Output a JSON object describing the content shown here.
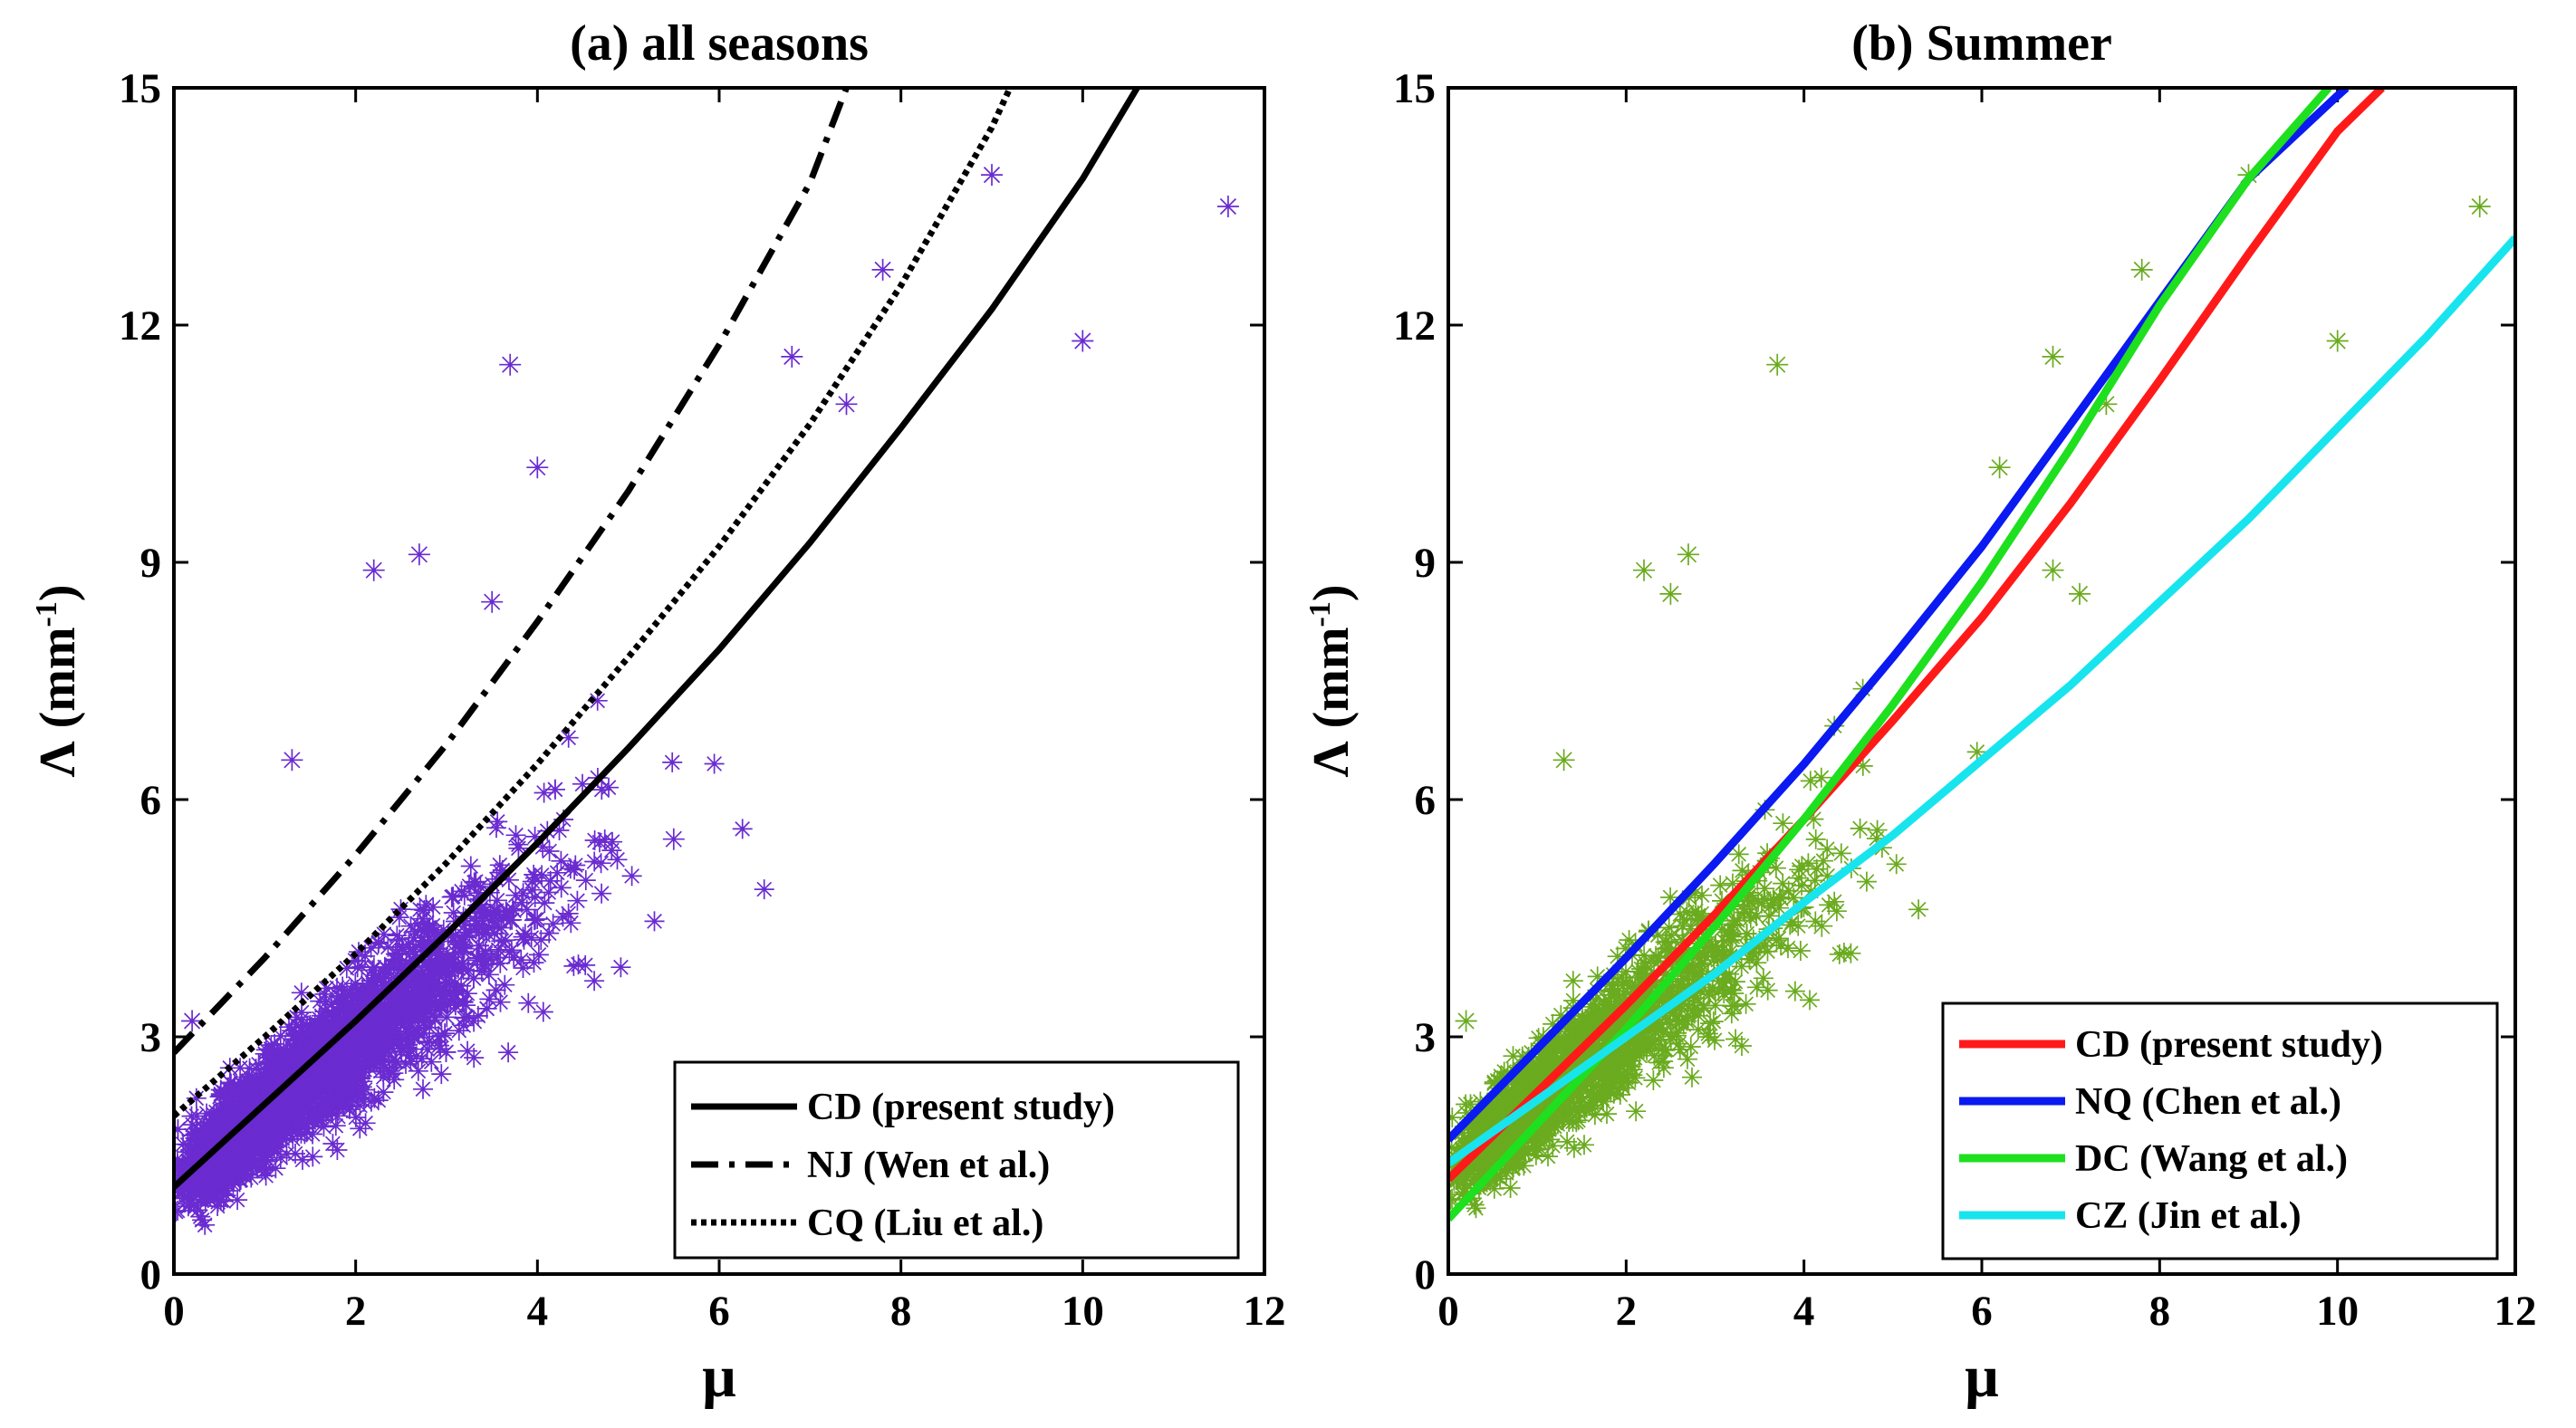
{
  "chart_data": [
    {
      "type": "scatter",
      "title": "(a) all seasons",
      "xlabel": "μ",
      "ylabel_main": "Λ (mm",
      "ylabel_sup": "-1",
      "ylabel_close": ")",
      "xlim": [
        0,
        12
      ],
      "ylim": [
        0,
        15
      ],
      "xticks": [
        "0",
        "2",
        "4",
        "6",
        "8",
        "10",
        "12"
      ],
      "yticks": [
        "0",
        "3",
        "6",
        "9",
        "12",
        "15"
      ],
      "scatter": {
        "color": "#6a2bd0",
        "marker": "asterisk",
        "note": "dense cloud of thousands of samples along Λ ≈ 1.2 + 0.9μ",
        "notable_points": [
          [
            3.7,
            11.5
          ],
          [
            4.0,
            10.2
          ],
          [
            9.0,
            13.9
          ],
          [
            10.0,
            11.8
          ],
          [
            11.6,
            13.5
          ],
          [
            7.8,
            12.7
          ],
          [
            6.8,
            11.6
          ],
          [
            7.4,
            11.0
          ],
          [
            2.2,
            8.9
          ],
          [
            2.7,
            9.1
          ],
          [
            3.5,
            8.5
          ],
          [
            1.3,
            6.5
          ],
          [
            0.2,
            3.2
          ],
          [
            5.5,
            5.5
          ],
          [
            3.3,
            3.2
          ],
          [
            1.8,
            2.0
          ]
        ]
      },
      "series": [
        {
          "name": "CD (present study)",
          "style": "solid",
          "color": "#000000",
          "x": [
            0,
            1,
            2,
            3,
            4,
            5,
            6,
            7,
            8,
            9,
            10,
            10.6
          ],
          "y": [
            1.1,
            2.15,
            3.2,
            4.3,
            5.45,
            6.65,
            7.9,
            9.25,
            10.7,
            12.2,
            13.85,
            15
          ]
        },
        {
          "name": "NJ (Wen et al.)",
          "style": "dashdot",
          "color": "#000000",
          "x": [
            0,
            1,
            2,
            3,
            4,
            5,
            6,
            7,
            7.4
          ],
          "y": [
            2.8,
            4.0,
            5.3,
            6.7,
            8.25,
            9.9,
            11.75,
            13.8,
            15
          ]
        },
        {
          "name": "CQ (Liu et al.)",
          "style": "dotted",
          "color": "#000000",
          "x": [
            0,
            1,
            2,
            3,
            4,
            5,
            6,
            7,
            8,
            9,
            9.2
          ],
          "y": [
            2.0,
            3.0,
            4.05,
            5.2,
            6.45,
            7.8,
            9.2,
            10.75,
            12.5,
            14.5,
            15
          ]
        }
      ],
      "legend": {
        "position": "bottom-right",
        "entries": [
          "CD (present study)",
          "NJ (Wen et al.)",
          "CQ (Liu et al.)"
        ]
      }
    },
    {
      "type": "scatter",
      "title": "(b) Summer",
      "xlabel": "μ",
      "ylabel_main": "Λ (mm",
      "ylabel_sup": "-1",
      "ylabel_close": ")",
      "xlim": [
        0,
        12
      ],
      "ylim": [
        0,
        15
      ],
      "xticks": [
        "0",
        "2",
        "4",
        "6",
        "8",
        "10",
        "12"
      ],
      "yticks": [
        "0",
        "3",
        "6",
        "9",
        "12",
        "15"
      ],
      "scatter": {
        "color": "#6aab1f",
        "marker": "asterisk",
        "note": "summer subset, cloud along Λ ≈ 1.3 + 0.9μ",
        "notable_points": [
          [
            3.7,
            11.5
          ],
          [
            9.0,
            13.9
          ],
          [
            10.0,
            11.8
          ],
          [
            11.6,
            13.5
          ],
          [
            7.8,
            12.7
          ],
          [
            6.8,
            11.6
          ],
          [
            7.4,
            11.0
          ],
          [
            6.8,
            8.9
          ],
          [
            7.1,
            8.6
          ],
          [
            2.2,
            8.9
          ],
          [
            2.7,
            9.1
          ],
          [
            2.5,
            8.6
          ],
          [
            6.2,
            10.2
          ],
          [
            1.3,
            6.5
          ],
          [
            0.2,
            3.2
          ],
          [
            4.2,
            4.4
          ]
        ]
      },
      "series": [
        {
          "name": "CD (present study)",
          "style": "solid",
          "color": "#ff1a1a",
          "x": [
            0,
            1,
            2,
            3,
            4,
            5,
            6,
            7,
            8,
            9,
            10,
            10.5
          ],
          "y": [
            1.2,
            2.3,
            3.4,
            4.55,
            5.75,
            7.0,
            8.3,
            9.75,
            11.3,
            12.9,
            14.45,
            15
          ]
        },
        {
          "name": "NQ (Chen et al.)",
          "style": "solid",
          "color": "#0a1af0",
          "x": [
            0,
            1,
            2,
            3,
            4,
            5,
            6,
            7,
            8,
            9,
            10,
            10.1
          ],
          "y": [
            1.7,
            2.85,
            4.0,
            5.2,
            6.45,
            7.8,
            9.2,
            10.75,
            12.3,
            13.85,
            14.9,
            15
          ]
        },
        {
          "name": "DC (Wang et al.)",
          "style": "solid",
          "color": "#1ee01e",
          "x": [
            0,
            1,
            2,
            3,
            4,
            5,
            6,
            7,
            8,
            9,
            9.9
          ],
          "y": [
            0.7,
            1.9,
            3.1,
            4.4,
            5.75,
            7.2,
            8.75,
            10.45,
            12.25,
            13.85,
            15
          ]
        },
        {
          "name": "CZ (Jin et al.)",
          "style": "solid",
          "color": "#18e4ee",
          "x": [
            0,
            1,
            2,
            3,
            4,
            5,
            6,
            7,
            8,
            9,
            10,
            11,
            12
          ],
          "y": [
            1.4,
            2.2,
            3.0,
            3.8,
            4.7,
            5.55,
            6.5,
            7.45,
            8.5,
            9.55,
            10.7,
            11.85,
            13.1
          ]
        }
      ],
      "legend": {
        "position": "bottom-right",
        "entries": [
          "CD (present study)",
          "NQ (Chen et al.)",
          "DC (Wang et al.)",
          "CZ (Jin et al.)"
        ]
      }
    }
  ]
}
